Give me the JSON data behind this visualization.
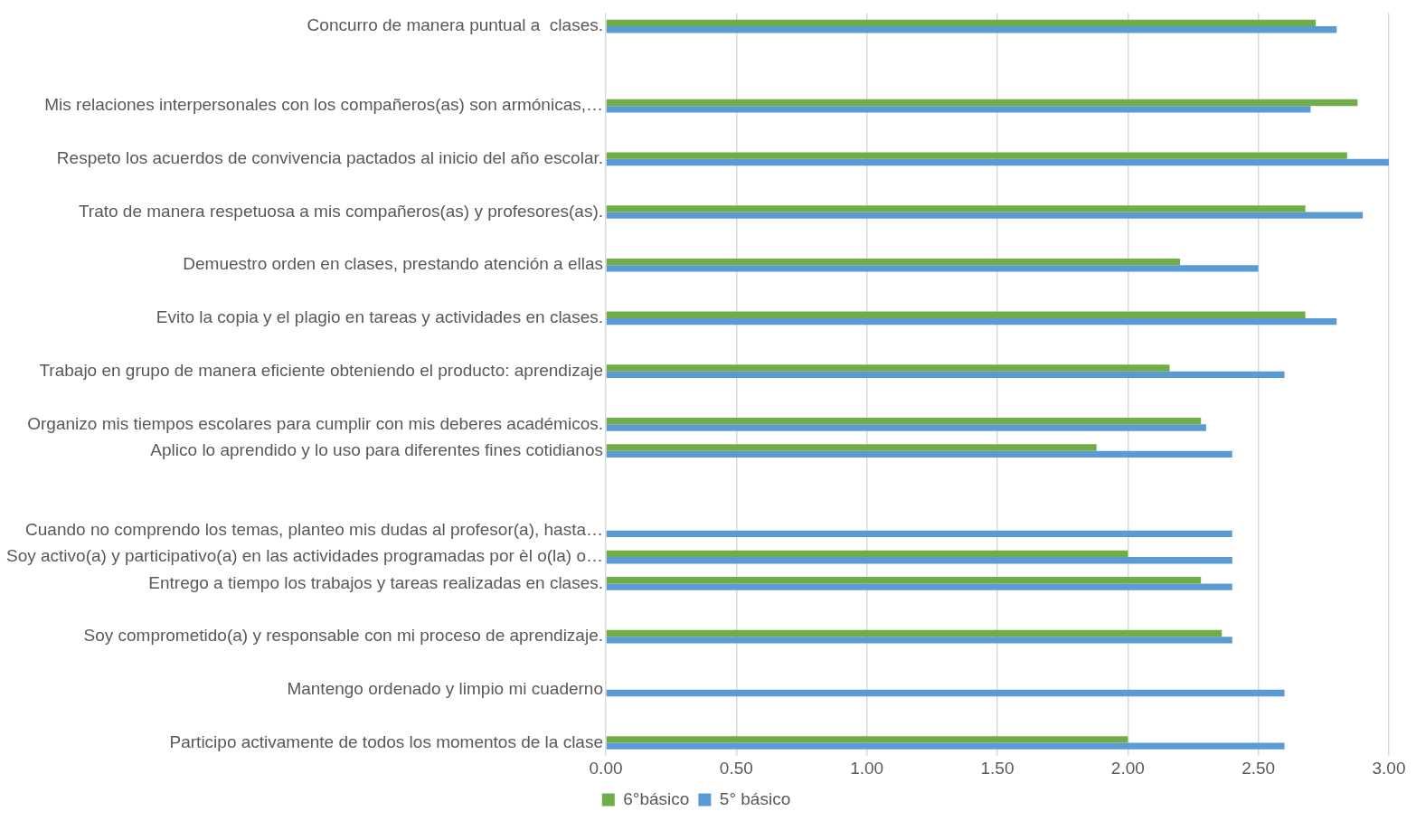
{
  "chart_data": {
    "type": "bar",
    "orientation": "horizontal",
    "categories": [
      "Concurro de manera puntual a  clases.",
      null,
      null,
      "Mis relaciones interpersonales con los compañeros(as) son armónicas,…",
      null,
      "Respeto los acuerdos de convivencia pactados al inicio del año escolar.",
      null,
      "Trato de manera respetuosa a mis compañeros(as) y profesores(as).",
      null,
      "Demuestro orden en clases, prestando atención a ellas",
      null,
      "Evito la copia y el plagio en tareas y actividades en clases.",
      null,
      "Trabajo en grupo de manera eficiente obteniendo el producto: aprendizaje",
      null,
      "Organizo mis tiempos escolares para cumplir con mis deberes académicos.",
      "Aplico lo aprendido y lo uso para diferentes fines cotidianos",
      null,
      null,
      "Cuando no comprendo los temas, planteo mis dudas al profesor(a), hasta…",
      "Soy activo(a) y participativo(a) en las actividades programadas por èl o(la) o…",
      "Entrego a tiempo los trabajos y tareas realizadas en clases.",
      null,
      "Soy comprometido(a) y responsable con mi proceso de aprendizaje.",
      null,
      "Mantengo ordenado y limpio mi cuaderno",
      null,
      "Participo activamente de todos los momentos de la clase"
    ],
    "series": [
      {
        "name": "6°básico",
        "color": "#70ad47",
        "values": [
          2.72,
          null,
          null,
          2.88,
          null,
          2.84,
          null,
          2.68,
          null,
          2.2,
          null,
          2.68,
          null,
          2.16,
          null,
          2.28,
          1.88,
          null,
          null,
          null,
          2.0,
          2.28,
          null,
          2.36,
          null,
          null,
          null,
          2.0
        ]
      },
      {
        "name": "5° básico",
        "color": "#5b9bd5",
        "values": [
          2.8,
          null,
          null,
          2.7,
          null,
          3.0,
          null,
          2.9,
          null,
          2.5,
          null,
          2.8,
          null,
          2.6,
          null,
          2.3,
          2.4,
          null,
          null,
          2.4,
          2.4,
          2.4,
          null,
          2.4,
          null,
          2.6,
          null,
          2.6
        ]
      }
    ],
    "xlim": [
      0,
      3
    ],
    "xticks": [
      {
        "value": 0,
        "label": "0.00"
      },
      {
        "value": 0.5,
        "label": "0.50"
      },
      {
        "value": 1,
        "label": "1.00"
      },
      {
        "value": 1.5,
        "label": "1.50"
      },
      {
        "value": 2,
        "label": "2.00"
      },
      {
        "value": 2.5,
        "label": "2.50"
      },
      {
        "value": 3,
        "label": "3.00"
      }
    ],
    "grid": "x",
    "legend": "bottom"
  }
}
